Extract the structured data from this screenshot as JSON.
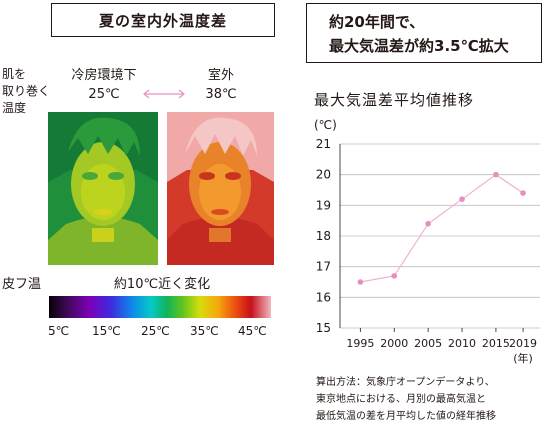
{
  "left_panel": {
    "title": "夏の室内外温度差",
    "side_label_lines": [
      "肌を",
      "取り巻く",
      "温度"
    ],
    "indoor_label": "冷房環境下",
    "indoor_temp": "25℃",
    "outdoor_label": "室外",
    "outdoor_temp": "38℃",
    "skin_label": "皮フ温",
    "change_label": "約10℃近く変化",
    "colorbar_ticks": [
      "5℃",
      "15℃",
      "25℃",
      "35℃",
      "45℃"
    ],
    "colors": {
      "arrow": "#e58fc0",
      "box_border": "#231815"
    }
  },
  "right_panel": {
    "headline_lines": [
      "約20年間で、",
      "最大気温差が約3.5℃拡大"
    ],
    "chart_title": "最大気温差平均値推移",
    "note_lines": [
      "算出方法：気象庁オープンデータより、",
      "東京地点における、月別の最高気温と",
      "最低気温の差を月平均した値の経年推移"
    ]
  },
  "chart_data": {
    "type": "line",
    "title": "最大気温差平均値推移",
    "ylabel": "(℃)",
    "xlabel": "(年)",
    "x": [
      1995,
      2000,
      2005,
      2010,
      2015,
      2019
    ],
    "series": [
      {
        "values": [
          16.5,
          16.7,
          18.4,
          19.2,
          20.0,
          19.4
        ]
      }
    ],
    "x_ticks": [
      "1995",
      "2000",
      "2005",
      "2010",
      "2015",
      "2019"
    ],
    "y_ticks": [
      "15",
      "16",
      "17",
      "18",
      "19",
      "20",
      "21"
    ],
    "ylim": [
      15,
      21
    ],
    "grid": "horizontal",
    "line_color": "#f0b2d0",
    "marker_color": "#e58fc0"
  }
}
